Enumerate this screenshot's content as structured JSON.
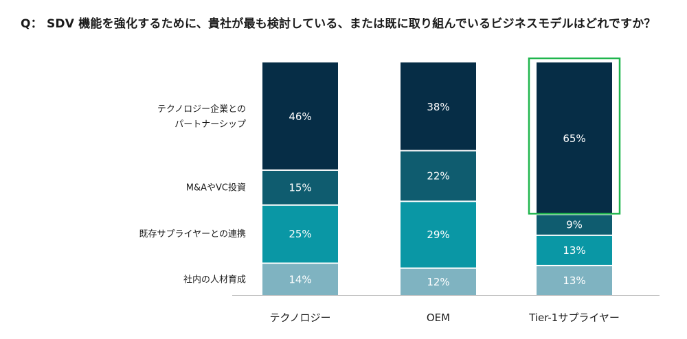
{
  "question": "Q： SDV 機能を強化するために、貴社が最も検討している、または既に取り組んでいるビジネスモデルはどれですか？",
  "chart_data": {
    "type": "bar",
    "stacked": true,
    "categories": [
      "テクノロジー",
      "OEM",
      "Tier-1サプライヤー"
    ],
    "series": [
      {
        "name": "社内の人材育成",
        "values": [
          14,
          12,
          13
        ],
        "labels": [
          "14%",
          "12%",
          "13%"
        ],
        "color": "#7fb3c1"
      },
      {
        "name": "既存サプライヤーとの連携",
        "values": [
          25,
          29,
          13
        ],
        "labels": [
          "25%",
          "29%",
          "13%"
        ],
        "color": "#0a97a5"
      },
      {
        "name": "M&AやVC投資",
        "values": [
          15,
          22,
          9
        ],
        "labels": [
          "15%",
          "22%",
          "9%"
        ],
        "color": "#0f5c6f"
      },
      {
        "name": "テクノロジー企業との\nパートナーシップ",
        "values": [
          46,
          38,
          65
        ],
        "labels": [
          "46%",
          "38%",
          "65%"
        ],
        "color": "#062d46"
      }
    ],
    "legend_position": "left",
    "highlight": {
      "category": "Tier-1サプライヤー",
      "series": "テクノロジー企業との\nパートナーシップ",
      "color": "#1fb54d"
    }
  }
}
